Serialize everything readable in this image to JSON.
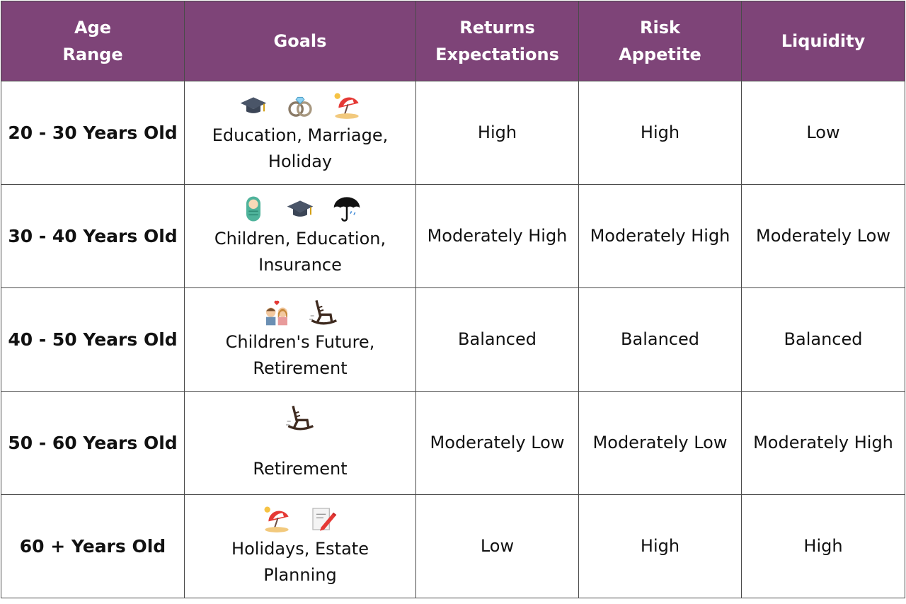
{
  "table": {
    "header": [
      [
        "Age",
        "Range"
      ],
      [
        "Goals"
      ],
      [
        "Returns",
        "Expectations"
      ],
      [
        "Risk",
        "Appetite"
      ],
      [
        "Liquidity"
      ]
    ],
    "rows": [
      [
        "20 - 30 Years Old",
        [
          "Education, Marriage,",
          "Holiday"
        ],
        "High",
        "High",
        "Low"
      ],
      [
        "30 - 40 Years Old",
        [
          "Children, Education,",
          "Insurance"
        ],
        "Moderately High",
        "Moderately High",
        "Moderately Low"
      ],
      [
        "40 - 50 Years Old",
        [
          "Children's Future,",
          "Retirement"
        ],
        "Balanced",
        "Balanced",
        "Balanced"
      ],
      [
        "50 - 60 Years Old",
        [
          "Retirement"
        ],
        "Moderately Low",
        "Moderately Low",
        "Moderately High"
      ],
      [
        "60 + Years Old",
        [
          "Holidays, Estate",
          "Planning"
        ],
        "Low",
        "High",
        "High"
      ]
    ]
  }
}
